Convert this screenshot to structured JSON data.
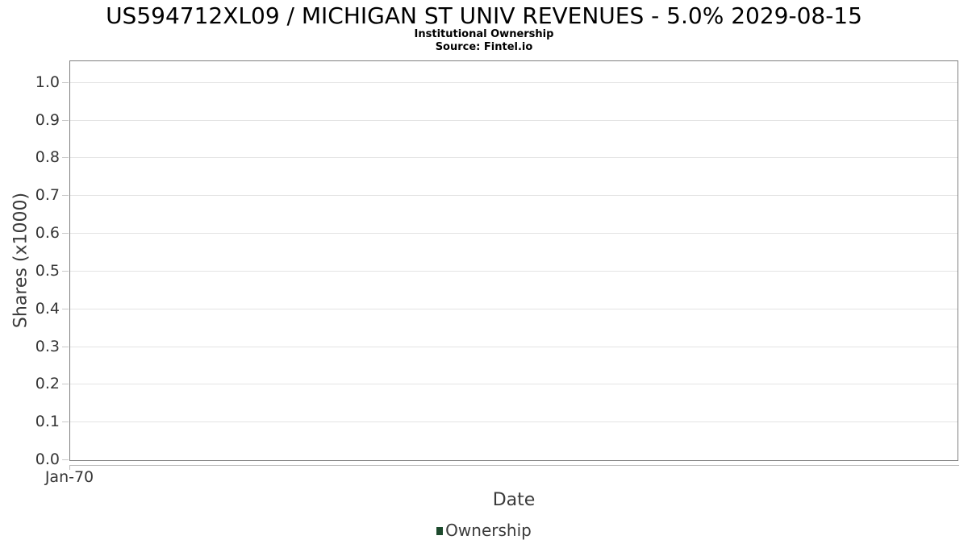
{
  "header": {
    "title": "US594712XL09 / MICHIGAN ST UNIV REVENUES - 5.0% 2029-08-15",
    "subtitle": "Institutional Ownership",
    "source": "Source: Fintel.io"
  },
  "chart_data": {
    "type": "line",
    "title": "US594712XL09 / MICHIGAN ST UNIV REVENUES - 5.0% 2029-08-15",
    "subtitle": "Institutional Ownership",
    "source": "Source: Fintel.io",
    "xlabel": "Date",
    "ylabel": "Shares (x1000)",
    "x_ticks": [
      "Jan-70"
    ],
    "y_ticks": [
      {
        "label": "0.0",
        "value": 0.0
      },
      {
        "label": "0.1",
        "value": 0.1
      },
      {
        "label": "0.2",
        "value": 0.2
      },
      {
        "label": "0.3",
        "value": 0.3
      },
      {
        "label": "0.4",
        "value": 0.4
      },
      {
        "label": "0.5",
        "value": 0.5
      },
      {
        "label": "0.6",
        "value": 0.6
      },
      {
        "label": "0.7",
        "value": 0.7
      },
      {
        "label": "0.8",
        "value": 0.8
      },
      {
        "label": "0.9",
        "value": 0.9
      },
      {
        "label": "1.0",
        "value": 1.0
      }
    ],
    "ylim": [
      0,
      1.055
    ],
    "grid": "horizontal",
    "legend_position": "bottom",
    "series": [
      {
        "name": "Ownership",
        "color": "#1d4a2d",
        "x": [],
        "values": []
      }
    ],
    "note": "empty chart - no data points plotted"
  },
  "colors": {
    "plot_border": "#7f7f7f",
    "gridline": "#e4e4e4",
    "legend_marker": "#1d4a2d",
    "text_primary": "#000000",
    "text_axis": "#3a3a3a"
  }
}
